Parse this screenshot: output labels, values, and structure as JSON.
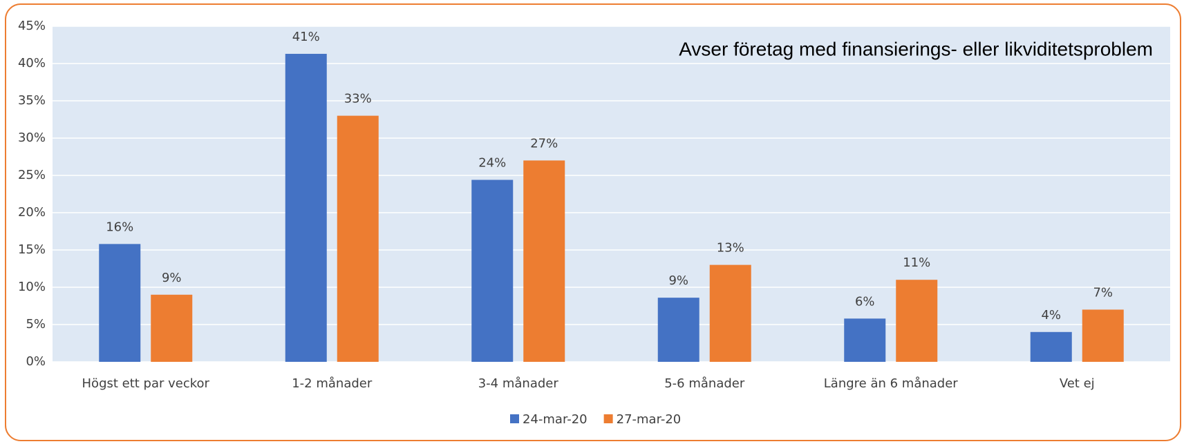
{
  "chart_data": {
    "type": "bar",
    "annotation": "Avser företag med finansierings- eller likviditetsproblem",
    "categories": [
      "Högst ett par veckor",
      "1-2 månader",
      "3-4 månader",
      "5-6 månader",
      "Längre än 6 månader",
      "Vet ej"
    ],
    "series": [
      {
        "name": "24-mar-20",
        "color": "#4472c4",
        "values": [
          15.8,
          41.3,
          24.4,
          8.6,
          5.8,
          4.0
        ],
        "value_labels": [
          "16%",
          "41%",
          "24%",
          "9%",
          "6%",
          "4%"
        ]
      },
      {
        "name": "27-mar-20",
        "color": "#ed7d31",
        "values": [
          9,
          33,
          27,
          13,
          11,
          7
        ],
        "value_labels": [
          "9%",
          "33%",
          "27%",
          "13%",
          "11%",
          "7%"
        ]
      }
    ],
    "ylim": [
      0,
      45
    ],
    "yticks": [
      {
        "value": 0,
        "label": "0%"
      },
      {
        "value": 5,
        "label": "5%"
      },
      {
        "value": 10,
        "label": "10%"
      },
      {
        "value": 15,
        "label": "15%"
      },
      {
        "value": 20,
        "label": "20%"
      },
      {
        "value": 25,
        "label": "25%"
      },
      {
        "value": 30,
        "label": "30%"
      },
      {
        "value": 35,
        "label": "35%"
      },
      {
        "value": 40,
        "label": "40%"
      },
      {
        "value": 45,
        "label": "45%"
      }
    ],
    "grid": true,
    "legend": "bottom"
  }
}
